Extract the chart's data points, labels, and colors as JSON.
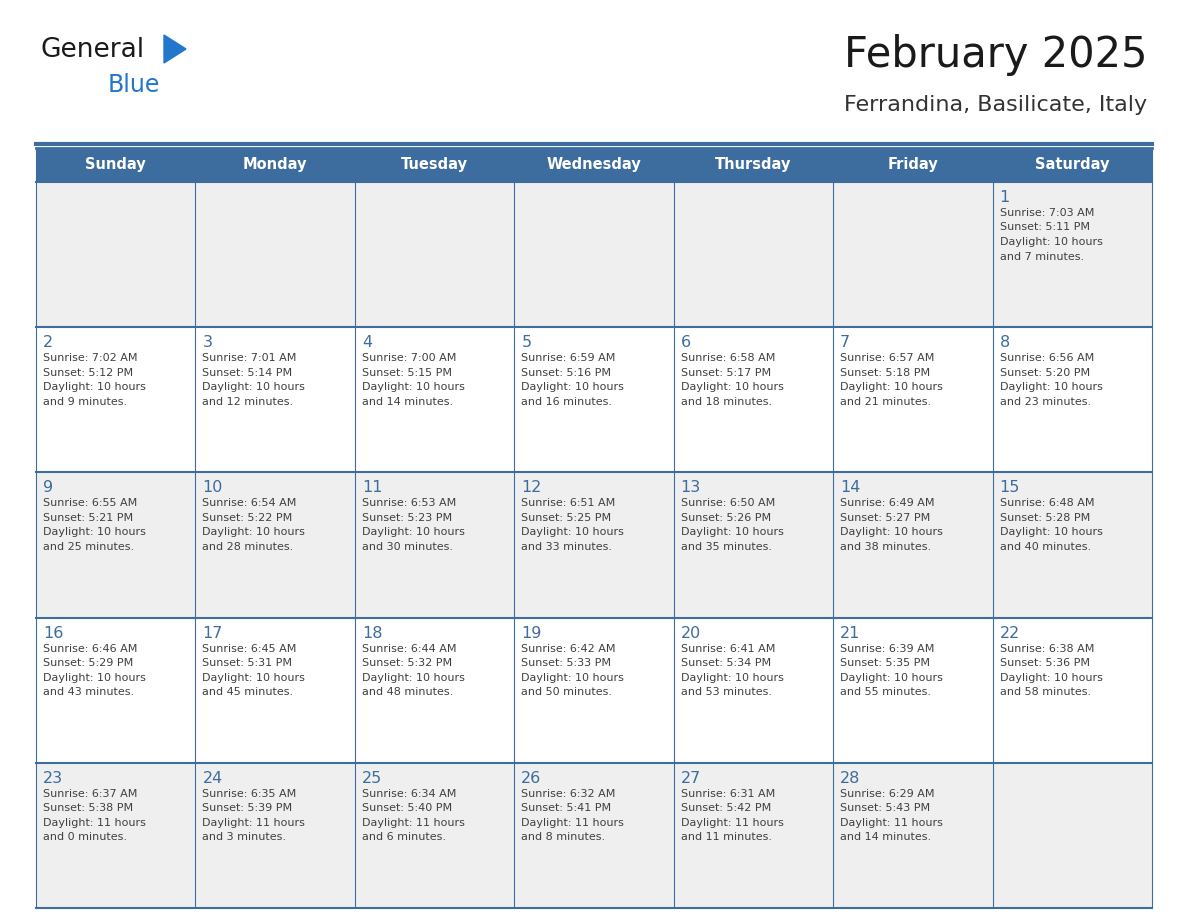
{
  "title": "February 2025",
  "subtitle": "Ferrandina, Basilicate, Italy",
  "days_of_week": [
    "Sunday",
    "Monday",
    "Tuesday",
    "Wednesday",
    "Thursday",
    "Friday",
    "Saturday"
  ],
  "header_bg": "#3d6c9e",
  "header_text": "#ffffff",
  "row_bg_light": "#efefef",
  "row_bg_white": "#ffffff",
  "border_color": "#3d6c9e",
  "day_number_color": "#3d6c9e",
  "text_color": "#404040",
  "title_color": "#1a1a1a",
  "subtitle_color": "#333333",
  "logo_general_color": "#1a1a1a",
  "logo_blue_color": "#2277cc",
  "weeks": [
    [
      null,
      null,
      null,
      null,
      null,
      null,
      {
        "day": "1",
        "sunrise": "7:03 AM",
        "sunset": "5:11 PM",
        "daylight": "10 hours",
        "daylight2": "and 7 minutes."
      }
    ],
    [
      {
        "day": "2",
        "sunrise": "7:02 AM",
        "sunset": "5:12 PM",
        "daylight": "10 hours",
        "daylight2": "and 9 minutes."
      },
      {
        "day": "3",
        "sunrise": "7:01 AM",
        "sunset": "5:14 PM",
        "daylight": "10 hours",
        "daylight2": "and 12 minutes."
      },
      {
        "day": "4",
        "sunrise": "7:00 AM",
        "sunset": "5:15 PM",
        "daylight": "10 hours",
        "daylight2": "and 14 minutes."
      },
      {
        "day": "5",
        "sunrise": "6:59 AM",
        "sunset": "5:16 PM",
        "daylight": "10 hours",
        "daylight2": "and 16 minutes."
      },
      {
        "day": "6",
        "sunrise": "6:58 AM",
        "sunset": "5:17 PM",
        "daylight": "10 hours",
        "daylight2": "and 18 minutes."
      },
      {
        "day": "7",
        "sunrise": "6:57 AM",
        "sunset": "5:18 PM",
        "daylight": "10 hours",
        "daylight2": "and 21 minutes."
      },
      {
        "day": "8",
        "sunrise": "6:56 AM",
        "sunset": "5:20 PM",
        "daylight": "10 hours",
        "daylight2": "and 23 minutes."
      }
    ],
    [
      {
        "day": "9",
        "sunrise": "6:55 AM",
        "sunset": "5:21 PM",
        "daylight": "10 hours",
        "daylight2": "and 25 minutes."
      },
      {
        "day": "10",
        "sunrise": "6:54 AM",
        "sunset": "5:22 PM",
        "daylight": "10 hours",
        "daylight2": "and 28 minutes."
      },
      {
        "day": "11",
        "sunrise": "6:53 AM",
        "sunset": "5:23 PM",
        "daylight": "10 hours",
        "daylight2": "and 30 minutes."
      },
      {
        "day": "12",
        "sunrise": "6:51 AM",
        "sunset": "5:25 PM",
        "daylight": "10 hours",
        "daylight2": "and 33 minutes."
      },
      {
        "day": "13",
        "sunrise": "6:50 AM",
        "sunset": "5:26 PM",
        "daylight": "10 hours",
        "daylight2": "and 35 minutes."
      },
      {
        "day": "14",
        "sunrise": "6:49 AM",
        "sunset": "5:27 PM",
        "daylight": "10 hours",
        "daylight2": "and 38 minutes."
      },
      {
        "day": "15",
        "sunrise": "6:48 AM",
        "sunset": "5:28 PM",
        "daylight": "10 hours",
        "daylight2": "and 40 minutes."
      }
    ],
    [
      {
        "day": "16",
        "sunrise": "6:46 AM",
        "sunset": "5:29 PM",
        "daylight": "10 hours",
        "daylight2": "and 43 minutes."
      },
      {
        "day": "17",
        "sunrise": "6:45 AM",
        "sunset": "5:31 PM",
        "daylight": "10 hours",
        "daylight2": "and 45 minutes."
      },
      {
        "day": "18",
        "sunrise": "6:44 AM",
        "sunset": "5:32 PM",
        "daylight": "10 hours",
        "daylight2": "and 48 minutes."
      },
      {
        "day": "19",
        "sunrise": "6:42 AM",
        "sunset": "5:33 PM",
        "daylight": "10 hours",
        "daylight2": "and 50 minutes."
      },
      {
        "day": "20",
        "sunrise": "6:41 AM",
        "sunset": "5:34 PM",
        "daylight": "10 hours",
        "daylight2": "and 53 minutes."
      },
      {
        "day": "21",
        "sunrise": "6:39 AM",
        "sunset": "5:35 PM",
        "daylight": "10 hours",
        "daylight2": "and 55 minutes."
      },
      {
        "day": "22",
        "sunrise": "6:38 AM",
        "sunset": "5:36 PM",
        "daylight": "10 hours",
        "daylight2": "and 58 minutes."
      }
    ],
    [
      {
        "day": "23",
        "sunrise": "6:37 AM",
        "sunset": "5:38 PM",
        "daylight": "11 hours",
        "daylight2": "and 0 minutes."
      },
      {
        "day": "24",
        "sunrise": "6:35 AM",
        "sunset": "5:39 PM",
        "daylight": "11 hours",
        "daylight2": "and 3 minutes."
      },
      {
        "day": "25",
        "sunrise": "6:34 AM",
        "sunset": "5:40 PM",
        "daylight": "11 hours",
        "daylight2": "and 6 minutes."
      },
      {
        "day": "26",
        "sunrise": "6:32 AM",
        "sunset": "5:41 PM",
        "daylight": "11 hours",
        "daylight2": "and 8 minutes."
      },
      {
        "day": "27",
        "sunrise": "6:31 AM",
        "sunset": "5:42 PM",
        "daylight": "11 hours",
        "daylight2": "and 11 minutes."
      },
      {
        "day": "28",
        "sunrise": "6:29 AM",
        "sunset": "5:43 PM",
        "daylight": "11 hours",
        "daylight2": "and 14 minutes."
      },
      null
    ]
  ],
  "row_shading": [
    true,
    false,
    false,
    false,
    true
  ]
}
